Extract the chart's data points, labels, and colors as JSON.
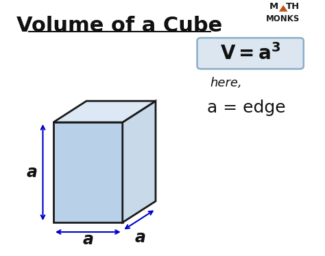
{
  "title": "Volume of a Cube",
  "title_fontsize": 22,
  "bg_color": "#ffffff",
  "formula_box_color": "#dce6f0",
  "formula_box_edge": "#8aaec8",
  "here_text": "here,",
  "here_fontsize": 13,
  "def_text": "a = edge",
  "def_fontsize": 17,
  "label_a": "a",
  "label_fontsize": 17,
  "arrow_color": "#0000cc",
  "cube_face_color": "#b8d0e8",
  "cube_top_color": "#dce9f5",
  "cube_side_color": "#c8daea",
  "cube_edge_color": "#1a1a1a",
  "cube_edge_lw": 2.0,
  "logo_triangle_color": "#c0531a",
  "logo_text_color": "#1a1a1a"
}
